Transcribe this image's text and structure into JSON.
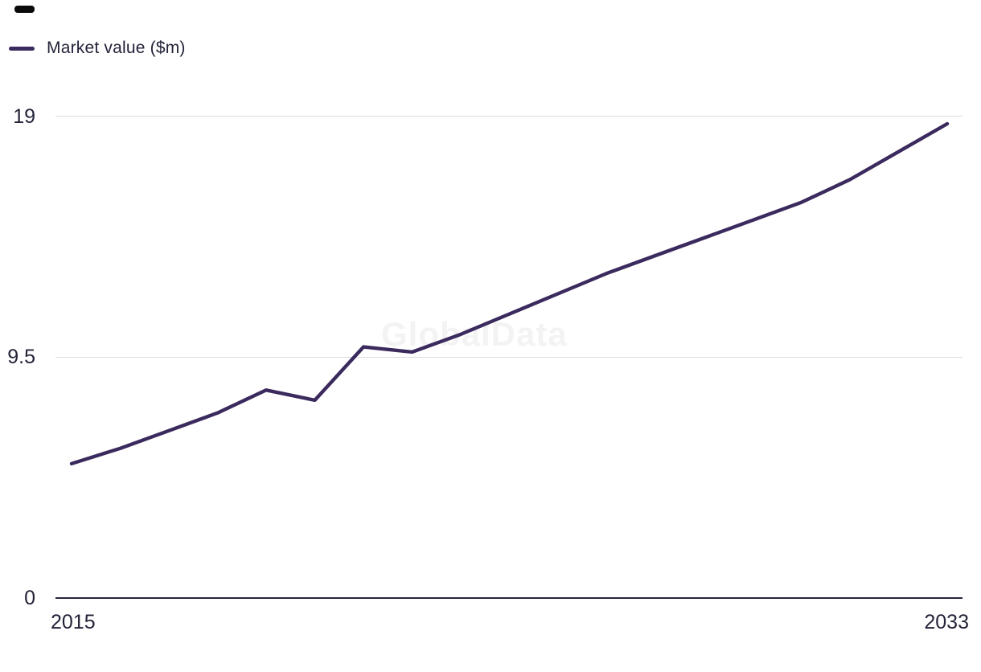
{
  "page": {
    "background": "#ffffff",
    "top_left_marker_color": "#0a0a0a"
  },
  "legend": {
    "label": "Market value ($m)",
    "swatch_color": "#3b2a5d"
  },
  "watermark": {
    "text": "GlobalData",
    "color": "#f3f3f3"
  },
  "axis_colors": {
    "gridline": "#dcdcdc",
    "axis_line": "#24233b",
    "tick_text": "#232339"
  },
  "chart_data": {
    "type": "line",
    "title": "",
    "legend_entries": [
      "Market value ($m)"
    ],
    "legend_position": "top-left",
    "grid": "horizontal-only",
    "x": [
      2015,
      2016,
      2017,
      2018,
      2019,
      2020,
      2021,
      2022,
      2023,
      2024,
      2025,
      2026,
      2027,
      2028,
      2029,
      2030,
      2031,
      2032,
      2033
    ],
    "series": [
      {
        "name": "Market value ($m)",
        "color": "#3b2a5d",
        "values": [
          5.3,
          5.9,
          6.6,
          7.3,
          8.2,
          7.8,
          9.9,
          9.7,
          10.4,
          11.2,
          12.0,
          12.8,
          13.5,
          14.2,
          14.9,
          15.6,
          16.5,
          17.6,
          18.7
        ]
      }
    ],
    "ylim": [
      0,
      19
    ],
    "y_ticks": [
      {
        "value": 0,
        "label": "0"
      },
      {
        "value": 9.5,
        "label": "9.5"
      },
      {
        "value": 19,
        "label": "19"
      }
    ],
    "x_tick_labels": {
      "first": "2015",
      "last": "2033"
    },
    "xlabel": "",
    "ylabel": ""
  }
}
